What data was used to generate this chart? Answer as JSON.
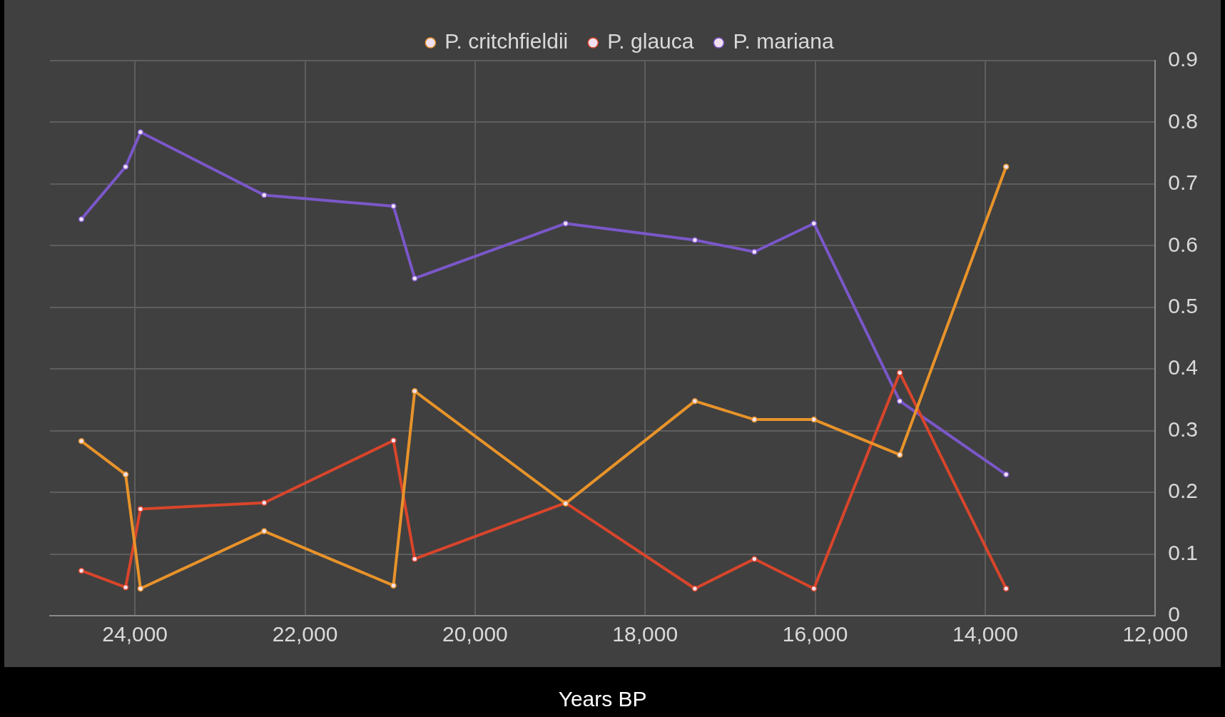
{
  "chart_data": {
    "type": "line",
    "xlabel": "Years BP",
    "legend": "top",
    "grid": true,
    "marker": "circle",
    "line_style": "solid",
    "x": [
      24630,
      24110,
      23935,
      22480,
      20960,
      20710,
      18935,
      17415,
      16715,
      16015,
      15005,
      13755
    ],
    "xlim": [
      25000,
      12000
    ],
    "xticks": [
      {
        "value": 24000,
        "label": "24,000"
      },
      {
        "value": 22000,
        "label": "22,000"
      },
      {
        "value": 20000,
        "label": "20,000"
      },
      {
        "value": 18000,
        "label": "18,000"
      },
      {
        "value": 16000,
        "label": "16,000"
      },
      {
        "value": 14000,
        "label": "14,000"
      },
      {
        "value": 12000,
        "label": "12,000"
      }
    ],
    "ylim": [
      0,
      0.9
    ],
    "yticks": [
      0,
      0.1,
      0.2,
      0.3,
      0.4,
      0.5,
      0.6,
      0.7,
      0.8,
      0.9
    ],
    "series": [
      {
        "name": "P. critchfieldii",
        "color": "#e8932a",
        "values": [
          0.283,
          0.229,
          0.044,
          0.137,
          0.049,
          0.364,
          0.182,
          0.348,
          0.318,
          0.318,
          0.261,
          0.728
        ]
      },
      {
        "name": "P. glauca",
        "color": "#d9452b",
        "values": [
          0.073,
          0.046,
          0.173,
          0.183,
          0.284,
          0.092,
          0.183,
          0.044,
          0.092,
          0.044,
          0.394,
          0.044
        ]
      },
      {
        "name": "P. mariana",
        "color": "#7b57c9",
        "values": [
          0.643,
          0.728,
          0.784,
          0.682,
          0.664,
          0.547,
          0.636,
          0.609,
          0.59,
          0.636,
          0.348,
          0.229
        ]
      }
    ]
  }
}
